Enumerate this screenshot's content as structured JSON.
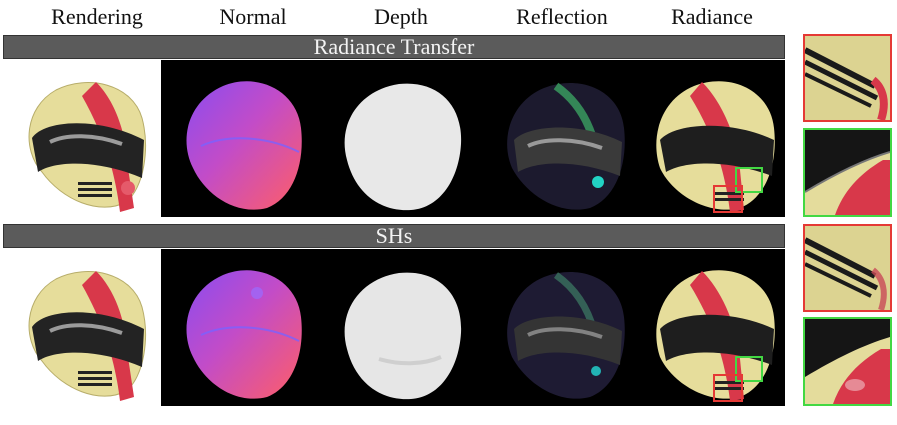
{
  "columns": [
    "Rendering",
    "Normal",
    "Depth",
    "Reflection",
    "Radiance"
  ],
  "rows": [
    {
      "label": "Radiance Transfer"
    },
    {
      "label": "SHs"
    }
  ],
  "colors": {
    "band": "#5b5b5b",
    "zoom_red": "#e53935",
    "zoom_green": "#43d843",
    "helmet_yellow": "#e6dd9b",
    "helmet_red": "#d8384a"
  }
}
